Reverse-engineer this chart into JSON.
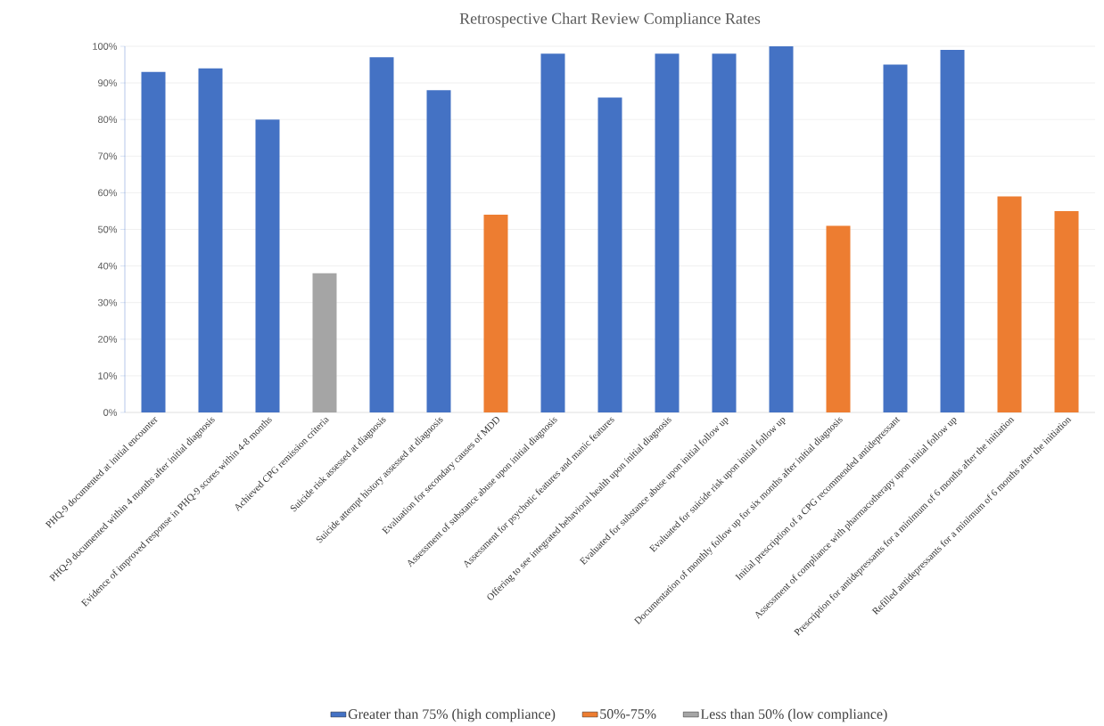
{
  "chart_data": {
    "type": "bar",
    "title": "Retrospective Chart Review Compliance Rates",
    "categories": [
      "PHQ-9 documented at initial encounter",
      "PHQ-9 documented within 4 months after initial diagnosis",
      "Evidence of improved response in PHQ-9 scores within 4-8 months",
      "Achieved CPG remission criteria",
      "Suicide risk assessed at diagnosis",
      "Suicide attempt history assessed at diagnosis",
      "Evaluation for secondary causes of MDD",
      "Assessment of substance abuse upon initial diagnosis",
      "Assessment for psychotic features and manic features",
      "Offering to see integrated behavioral health upon initial diagnosis",
      "Evaluated for substance abuse upon initial follow up",
      "Evaluated for suicide risk upon initial follow up",
      "Documentation of monthly follow up for six months after initial diagnosis",
      "Initial prescription of a CPG recommended antidepressant",
      "Assessment of compliance with pharmacotherapy upon initial follow up",
      "Prescription for antidepressants for a minimum of 6 months after the initiation",
      "Refilled antidepressants for a minimum of 6 months after the initiation"
    ],
    "series": [
      {
        "name": "Greater than 75% (high compliance)",
        "color": "#4472c4",
        "values": [
          93,
          94,
          80,
          null,
          97,
          88,
          null,
          98,
          86,
          98,
          98,
          100,
          null,
          95,
          99,
          null,
          null
        ]
      },
      {
        "name": "50%-75%",
        "color": "#ed7d31",
        "values": [
          null,
          null,
          null,
          null,
          null,
          null,
          54,
          null,
          null,
          null,
          null,
          null,
          51,
          null,
          null,
          59,
          55
        ]
      },
      {
        "name": "Less than 50% (low compliance)",
        "color": "#a5a5a5",
        "values": [
          null,
          null,
          null,
          38,
          null,
          null,
          null,
          null,
          null,
          null,
          null,
          null,
          null,
          null,
          null,
          null,
          null
        ]
      }
    ],
    "ylim": [
      0,
      100
    ],
    "yticks": [
      {
        "value": 0,
        "label": "0%"
      },
      {
        "value": 10,
        "label": "10%"
      },
      {
        "value": 20,
        "label": "20%"
      },
      {
        "value": 30,
        "label": "30%"
      },
      {
        "value": 40,
        "label": "40%"
      },
      {
        "value": 50,
        "label": "50%"
      },
      {
        "value": 60,
        "label": "60%"
      },
      {
        "value": 70,
        "label": "70%"
      },
      {
        "value": 80,
        "label": "80%"
      },
      {
        "value": 90,
        "label": "90%"
      },
      {
        "value": 100,
        "label": "100%"
      }
    ],
    "grid": "y",
    "legend": "bottom"
  }
}
